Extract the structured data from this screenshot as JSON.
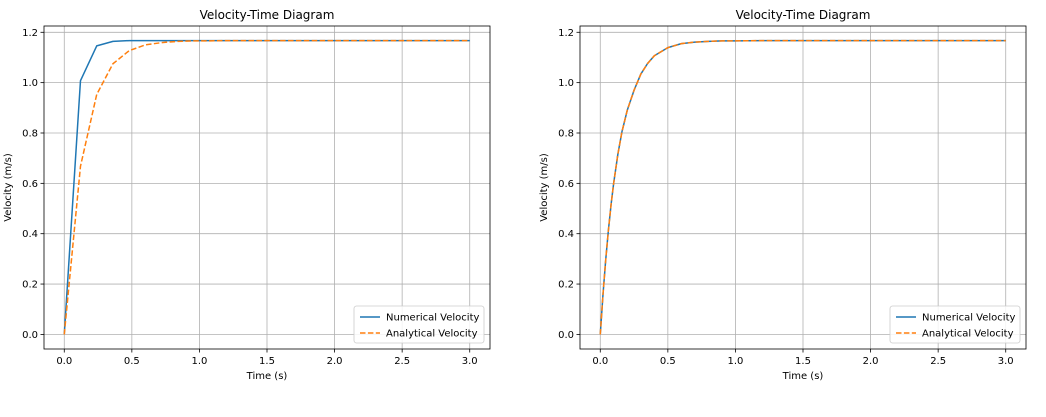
{
  "chart_data": [
    {
      "type": "line",
      "title": "Velocity-Time Diagram",
      "xlabel": "Time (s)",
      "ylabel": "Velocity (m/s)",
      "xlim": [
        -0.15,
        3.15
      ],
      "ylim": [
        -0.058,
        1.225
      ],
      "xticks": [
        0.0,
        0.5,
        1.0,
        1.5,
        2.0,
        2.5,
        3.0
      ],
      "xtick_labels": [
        "0.0",
        "0.5",
        "1.0",
        "1.5",
        "2.0",
        "2.5",
        "3.0"
      ],
      "yticks": [
        0.0,
        0.2,
        0.4,
        0.6,
        0.8,
        1.0,
        1.2
      ],
      "ytick_labels": [
        "0.0",
        "0.2",
        "0.4",
        "0.6",
        "0.8",
        "1.0",
        "1.2"
      ],
      "grid": true,
      "legend_position": "lower-right",
      "series": [
        {
          "name": "Numerical Velocity",
          "color": "#1f77b4",
          "style": "solid",
          "x": [
            0.0,
            0.12,
            0.24,
            0.36,
            0.48,
            0.6,
            0.72,
            0.84,
            0.96,
            1.2,
            1.5,
            2.0,
            2.5,
            3.0
          ],
          "y": [
            0.0,
            1.008,
            1.146,
            1.164,
            1.167,
            1.167,
            1.167,
            1.167,
            1.167,
            1.167,
            1.167,
            1.167,
            1.167,
            1.167
          ]
        },
        {
          "name": "Analytical Velocity",
          "color": "#ff7f0e",
          "style": "dashed",
          "x": [
            0.0,
            0.12,
            0.24,
            0.36,
            0.48,
            0.6,
            0.72,
            0.84,
            0.96,
            1.08,
            1.2,
            1.5,
            2.0,
            2.5,
            3.0
          ],
          "y": [
            0.0,
            0.668,
            0.953,
            1.075,
            1.127,
            1.15,
            1.159,
            1.164,
            1.166,
            1.166,
            1.167,
            1.167,
            1.167,
            1.167,
            1.167
          ]
        }
      ]
    },
    {
      "type": "line",
      "title": "Velocity-Time Diagram",
      "xlabel": "Time (s)",
      "ylabel": "Velocity (m/s)",
      "xlim": [
        -0.15,
        3.15
      ],
      "ylim": [
        -0.058,
        1.225
      ],
      "xticks": [
        0.0,
        0.5,
        1.0,
        1.5,
        2.0,
        2.5,
        3.0
      ],
      "xtick_labels": [
        "0.0",
        "0.5",
        "1.0",
        "1.5",
        "2.0",
        "2.5",
        "3.0"
      ],
      "yticks": [
        0.0,
        0.2,
        0.4,
        0.6,
        0.8,
        1.0,
        1.2
      ],
      "ytick_labels": [
        "0.0",
        "0.2",
        "0.4",
        "0.6",
        "0.8",
        "1.0",
        "1.2"
      ],
      "grid": true,
      "legend_position": "lower-right",
      "series": [
        {
          "name": "Numerical Velocity",
          "color": "#1f77b4",
          "style": "solid",
          "x": [
            0.0,
            0.02,
            0.04,
            0.06,
            0.08,
            0.1,
            0.13,
            0.16,
            0.2,
            0.25,
            0.3,
            0.35,
            0.4,
            0.5,
            0.6,
            0.7,
            0.8,
            0.9,
            1.0,
            1.2,
            1.5,
            2.0,
            2.5,
            3.0
          ],
          "y": [
            0.0,
            0.158,
            0.295,
            0.413,
            0.516,
            0.604,
            0.715,
            0.804,
            0.891,
            0.97,
            1.034,
            1.076,
            1.107,
            1.139,
            1.155,
            1.161,
            1.164,
            1.166,
            1.166,
            1.167,
            1.167,
            1.167,
            1.167,
            1.167
          ]
        },
        {
          "name": "Analytical Velocity",
          "color": "#ff7f0e",
          "style": "dashed",
          "x": [
            0.0,
            0.02,
            0.04,
            0.06,
            0.08,
            0.1,
            0.13,
            0.16,
            0.2,
            0.25,
            0.3,
            0.35,
            0.4,
            0.5,
            0.6,
            0.7,
            0.8,
            0.9,
            1.0,
            1.2,
            1.5,
            2.0,
            2.5,
            3.0
          ],
          "y": [
            0.0,
            0.158,
            0.295,
            0.413,
            0.516,
            0.604,
            0.715,
            0.804,
            0.891,
            0.97,
            1.034,
            1.076,
            1.107,
            1.139,
            1.155,
            1.161,
            1.164,
            1.166,
            1.166,
            1.167,
            1.167,
            1.167,
            1.167,
            1.167
          ]
        }
      ]
    }
  ]
}
